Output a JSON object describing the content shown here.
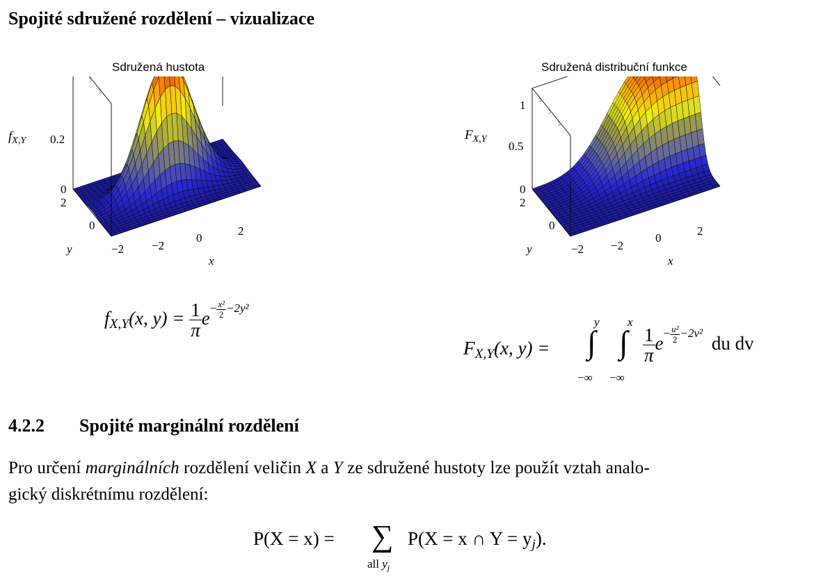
{
  "section_title": "Spojité sdružené rozdělení – vizualizace",
  "plots": [
    {
      "title": "Sdružená hustota",
      "zlabel": "f",
      "zlabel_sub": "X,Y",
      "xlabel": "x",
      "ylabel": "y",
      "zticks": [
        "0",
        "0.2"
      ],
      "xticks": [
        "−2",
        "0",
        "2"
      ],
      "yticks": [
        "−2",
        "0",
        "2"
      ]
    },
    {
      "title": "Sdružená distribuční funkce",
      "zlabel": "F",
      "zlabel_sub": "X,Y",
      "xlabel": "x",
      "ylabel": "y",
      "zticks": [
        "0",
        "0.5",
        "1"
      ],
      "xticks": [
        "−2",
        "0",
        "2"
      ],
      "yticks": [
        "−2",
        "0",
        "2"
      ]
    }
  ],
  "chart_data": [
    {
      "type": "surface",
      "title": "Sdružená hustota",
      "function": "f(x,y) = (1/π)·exp(−x²/2 − 2y²)",
      "xlim": [
        -3,
        3
      ],
      "ylim": [
        -2,
        2
      ],
      "zlim": [
        0,
        0.32
      ],
      "zticks": [
        0,
        0.2
      ],
      "colormap": "hot-to-blue",
      "grid": false
    },
    {
      "type": "surface",
      "title": "Sdružená distribuční funkce",
      "function": "F(x,y) = ∫∫ (1/π)·exp(−u²/2 − 2v²) du dv",
      "xlim": [
        -3,
        3
      ],
      "ylim": [
        -2,
        2
      ],
      "zlim": [
        0,
        1
      ],
      "zticks": [
        0,
        0.5,
        1
      ],
      "colormap": "hot-to-blue",
      "grid": false
    }
  ],
  "formula_left": {
    "lhs_f": "f",
    "lhs_sub": "X,Y",
    "lhs_args": "(x, y) =",
    "frac_num": "1",
    "frac_den": "π",
    "e": "e",
    "exp_minus": "−",
    "exp_frac_num": "x²",
    "exp_frac_den": "2",
    "exp_rest": "−2y²"
  },
  "formula_right": {
    "lhs_f": "F",
    "lhs_sub": "X,Y",
    "lhs_args": "(x, y) =",
    "int1_upper": "y",
    "int1_lower": "−∞",
    "int2_upper": "x",
    "int2_lower": "−∞",
    "frac_num": "1",
    "frac_den": "π",
    "e": "e",
    "exp_minus": "−",
    "exp_frac_num": "u²",
    "exp_frac_den": "2",
    "exp_rest": "−2v²",
    "differentials": "du dv"
  },
  "subsection": {
    "number": "4.2.2",
    "title": "Spojité marginální rozdělení"
  },
  "paragraph": {
    "t1": "Pro určení ",
    "em": "marginálních",
    "t2": " rozdělení veličin ",
    "X": "X",
    "t3": " a ",
    "Y": "Y",
    "t4": " ze sdružené hustoty lze použít vztah analo-",
    "line2": "gický diskrétnímu rozdělení:"
  },
  "formula_bottom": {
    "lhs": "P(X = x) =",
    "sum_sub_all": "all",
    "sum_sub_var": "y",
    "sum_sub_idx": "j",
    "rhs": "P(X = x ∩ Y = y",
    "rhs_idx": "j",
    "rhs_end": ")."
  }
}
